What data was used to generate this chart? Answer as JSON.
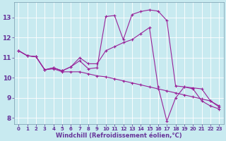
{
  "xlabel": "Windchill (Refroidissement éolien,°C)",
  "xlim_min": -0.5,
  "xlim_max": 23.5,
  "ylim_min": 7.7,
  "ylim_max": 13.75,
  "xticks": [
    0,
    1,
    2,
    3,
    4,
    5,
    6,
    7,
    8,
    9,
    10,
    11,
    12,
    13,
    14,
    15,
    16,
    17,
    18,
    19,
    20,
    21,
    22,
    23
  ],
  "yticks": [
    8,
    9,
    10,
    11,
    12,
    13
  ],
  "bg_color": "#c8eaf0",
  "line_color": "#992299",
  "line1_x": [
    0,
    1,
    2,
    3,
    4,
    5,
    6,
    7,
    8,
    9,
    10,
    11,
    12,
    13,
    14,
    15,
    16,
    17,
    18,
    19,
    20,
    21,
    22,
    23
  ],
  "line1_y": [
    11.35,
    11.1,
    11.05,
    10.4,
    10.5,
    10.35,
    10.55,
    10.85,
    10.45,
    10.5,
    13.05,
    13.1,
    11.9,
    13.15,
    13.3,
    13.38,
    13.32,
    12.85,
    9.6,
    9.55,
    9.5,
    9.45,
    8.85,
    8.6
  ],
  "line2_x": [
    0,
    1,
    2,
    3,
    4,
    5,
    6,
    7,
    8,
    9,
    10,
    11,
    12,
    13,
    14,
    15,
    16,
    17,
    18,
    19,
    20,
    21,
    22,
    23
  ],
  "line2_y": [
    11.35,
    11.1,
    11.05,
    10.4,
    10.5,
    10.35,
    10.55,
    11.0,
    10.7,
    10.7,
    11.35,
    11.55,
    11.75,
    11.9,
    12.2,
    12.5,
    9.55,
    7.85,
    9.0,
    9.55,
    9.45,
    8.85,
    8.6,
    8.45
  ],
  "line3_x": [
    0,
    1,
    2,
    3,
    4,
    5,
    6,
    7,
    8,
    9,
    10,
    11,
    12,
    13,
    14,
    15,
    16,
    17,
    18,
    19,
    20,
    21,
    22,
    23
  ],
  "line3_y": [
    11.35,
    11.1,
    11.05,
    10.4,
    10.45,
    10.3,
    10.3,
    10.3,
    10.2,
    10.1,
    10.05,
    9.95,
    9.85,
    9.75,
    9.65,
    9.55,
    9.45,
    9.35,
    9.25,
    9.15,
    9.05,
    8.95,
    8.85,
    8.55
  ],
  "grid_color": "#aad4de",
  "spine_color": "#7799aa",
  "tick_color": "#663399",
  "label_color": "#663399",
  "xlabel_fontsize": 6.0,
  "ytick_fontsize": 6.5,
  "xtick_fontsize": 5.0
}
